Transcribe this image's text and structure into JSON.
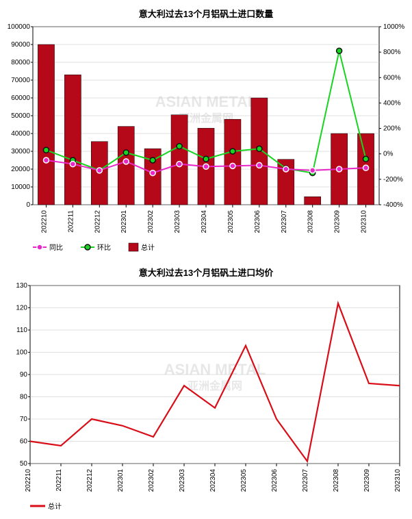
{
  "top_chart": {
    "type": "bar+line_dual_axis",
    "title": "意大利过去13个月铝矾土进口数量",
    "title_fontsize": 13,
    "categories": [
      "202210",
      "202211",
      "202212",
      "202301",
      "202302",
      "202303",
      "202304",
      "202305",
      "202306",
      "202307",
      "202308",
      "202309",
      "202310"
    ],
    "bars": {
      "label": "总计",
      "color": "#b5091a",
      "values": [
        90000,
        73000,
        35500,
        44000,
        31500,
        50500,
        43000,
        48000,
        60000,
        25500,
        4500,
        40000,
        40000
      ]
    },
    "line_yoy": {
      "label": "同比",
      "color": "#e927c8",
      "marker_border": "#ffffff",
      "values": [
        -50,
        -80,
        -130,
        -60,
        -150,
        -80,
        -100,
        -95,
        -90,
        -120,
        -130,
        -120,
        -110
      ]
    },
    "line_mom": {
      "label": "环比",
      "color": "#17d421",
      "marker_border": "#111111",
      "values": [
        30,
        -50,
        -130,
        10,
        -50,
        60,
        -40,
        20,
        40,
        -115,
        -150,
        810,
        -40
      ]
    },
    "y_left": {
      "min": 0,
      "max": 100000,
      "step": 10000
    },
    "y_right": {
      "min": -400,
      "max": 1000,
      "step": 200
    },
    "grid_color": "#c0c0c0",
    "axis_color": "#000000",
    "background_color": "#ffffff",
    "watermark_primary": "ASIAN METAL",
    "watermark_secondary": "亚洲金属网",
    "legend_position": "bottom-left"
  },
  "bottom_chart": {
    "type": "line",
    "title": "意大利过去13个月铝矾土进口均价",
    "title_fontsize": 13,
    "categories": [
      "202210",
      "202211",
      "202212",
      "202301",
      "202302",
      "202303",
      "202304",
      "202305",
      "202306",
      "202307",
      "202308",
      "202309",
      "202310"
    ],
    "line": {
      "label": "总计",
      "color": "#d90d17",
      "values": [
        60,
        58,
        70,
        67,
        62,
        85,
        75,
        103,
        70,
        51,
        122,
        86,
        85
      ]
    },
    "y": {
      "min": 50,
      "max": 130,
      "step": 10
    },
    "grid_color": "#c0c0c0",
    "axis_color": "#000000",
    "background_color": "#ffffff",
    "watermark_primary": "ASIAN METAL",
    "watermark_secondary": "亚洲金属网",
    "legend_position": "bottom-left"
  }
}
